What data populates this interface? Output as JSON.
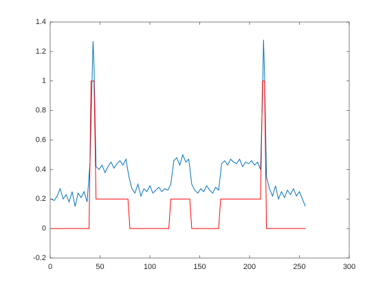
{
  "chart_data": {
    "type": "line",
    "xlim": [
      0,
      300
    ],
    "xticks": [
      0,
      50,
      100,
      150,
      200,
      250,
      300
    ],
    "ylim": [
      -0.2,
      1.4
    ],
    "yticks": [
      -0.2,
      0,
      0.2,
      0.4,
      0.6,
      0.8,
      1,
      1.2,
      1.4
    ],
    "grid": false,
    "series": [
      {
        "color": "#0072bd",
        "x": [
          1,
          4,
          7,
          10,
          13,
          16,
          19,
          22,
          25,
          28,
          31,
          34,
          37,
          40,
          42,
          43,
          44,
          46,
          49,
          52,
          55,
          58,
          61,
          64,
          67,
          70,
          73,
          76,
          79,
          82,
          85,
          88,
          91,
          94,
          97,
          100,
          103,
          106,
          109,
          112,
          115,
          118,
          121,
          124,
          127,
          130,
          133,
          136,
          139,
          142,
          145,
          148,
          151,
          154,
          157,
          160,
          163,
          166,
          169,
          172,
          175,
          178,
          181,
          184,
          187,
          190,
          193,
          196,
          199,
          202,
          205,
          208,
          211,
          213,
          214,
          215,
          217,
          220,
          223,
          226,
          229,
          232,
          235,
          238,
          241,
          244,
          247,
          250,
          253,
          256
        ],
        "values": [
          0.2,
          0.19,
          0.22,
          0.27,
          0.2,
          0.23,
          0.18,
          0.25,
          0.15,
          0.24,
          0.21,
          0.25,
          0.18,
          0.45,
          1.0,
          1.27,
          1.1,
          0.42,
          0.4,
          0.43,
          0.38,
          0.42,
          0.45,
          0.41,
          0.44,
          0.46,
          0.43,
          0.47,
          0.35,
          0.27,
          0.24,
          0.3,
          0.22,
          0.27,
          0.25,
          0.29,
          0.24,
          0.26,
          0.28,
          0.25,
          0.27,
          0.26,
          0.3,
          0.46,
          0.48,
          0.43,
          0.5,
          0.45,
          0.47,
          0.3,
          0.26,
          0.24,
          0.27,
          0.25,
          0.29,
          0.26,
          0.24,
          0.28,
          0.26,
          0.44,
          0.46,
          0.43,
          0.47,
          0.45,
          0.44,
          0.47,
          0.42,
          0.45,
          0.44,
          0.46,
          0.43,
          0.45,
          0.4,
          0.9,
          1.28,
          1.05,
          0.35,
          0.27,
          0.22,
          0.29,
          0.2,
          0.25,
          0.21,
          0.26,
          0.23,
          0.27,
          0.22,
          0.25,
          0.2,
          0.15
        ]
      },
      {
        "color": "#ff0000",
        "x": [
          1,
          39,
          41,
          44,
          46,
          78,
          80,
          119,
          121,
          140,
          142,
          169,
          171,
          211,
          213,
          215,
          217,
          256
        ],
        "values": [
          0,
          0,
          1,
          1,
          0.2,
          0.2,
          0,
          0,
          0.2,
          0.2,
          0,
          0,
          0.2,
          0.2,
          1,
          1,
          0,
          0
        ]
      }
    ]
  }
}
